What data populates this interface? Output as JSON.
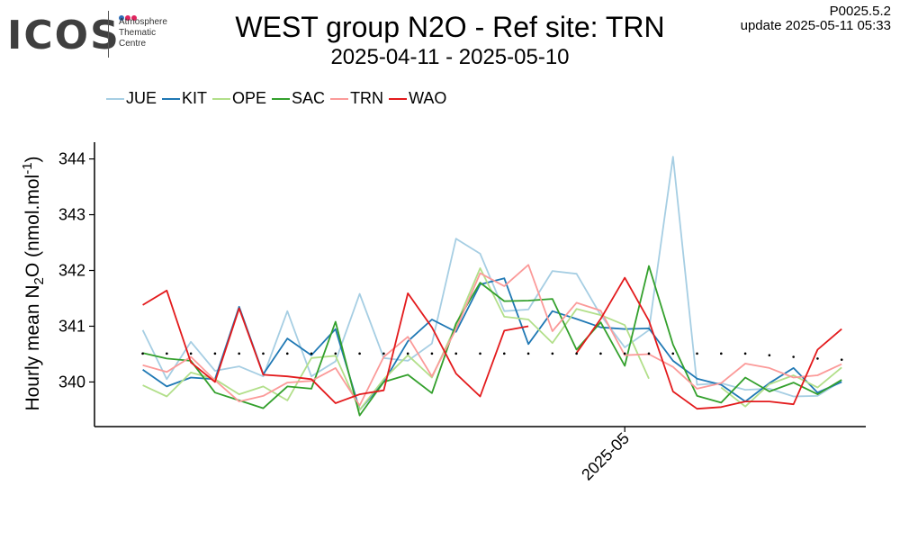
{
  "logo": {
    "text": "ICOS",
    "subtitle_lines": [
      "Atmosphere",
      "Thematic",
      "Centre"
    ],
    "dot_colors": [
      "#2f6db5",
      "#e0245e",
      "#e0245e"
    ]
  },
  "header": {
    "title": "WEST group N2O - Ref site: TRN",
    "subtitle": "2025-04-11 - 2025-05-10",
    "version": "P0025.5.2",
    "update": "update  2025-05-11 05:33"
  },
  "chart_data": {
    "type": "line",
    "title": "WEST group N2O - Ref site: TRN",
    "subtitle": "2025-04-11 - 2025-05-10",
    "ylabel_parts": {
      "pre": "Hourly mean  N",
      "sub": "2",
      "mid": "O (nmol.mol",
      "sup": "-1",
      "post": ")"
    },
    "xlabel": "",
    "x": [
      "2025-04-11",
      "2025-04-12",
      "2025-04-13",
      "2025-04-14",
      "2025-04-15",
      "2025-04-16",
      "2025-04-17",
      "2025-04-18",
      "2025-04-19",
      "2025-04-20",
      "2025-04-21",
      "2025-04-22",
      "2025-04-23",
      "2025-04-24",
      "2025-04-25",
      "2025-04-26",
      "2025-04-27",
      "2025-04-28",
      "2025-04-29",
      "2025-04-30",
      "2025-05-01",
      "2025-05-02",
      "2025-05-03",
      "2025-05-04",
      "2025-05-05",
      "2025-05-06",
      "2025-05-07",
      "2025-05-08",
      "2025-05-09",
      "2025-05-10"
    ],
    "xlim": [
      "2025-04-09",
      "2025-05-11"
    ],
    "ylim": [
      339.2,
      344.3
    ],
    "yticks": [
      340,
      341,
      342,
      343,
      344
    ],
    "xticks": [
      {
        "date": "2025-05-01",
        "label": "2025-05"
      }
    ],
    "legend_position": "top-left",
    "grid": false,
    "series": [
      {
        "name": "JUE",
        "color": "#a6cee3",
        "values": [
          340.93,
          340.05,
          340.72,
          340.2,
          340.28,
          340.1,
          341.27,
          340.1,
          340.37,
          341.58,
          340.43,
          340.38,
          340.69,
          342.57,
          342.3,
          341.27,
          341.3,
          341.99,
          341.94,
          341.2,
          340.62,
          340.93,
          344.04,
          339.95,
          339.98,
          339.86,
          339.88,
          339.74,
          339.75,
          340.02
        ]
      },
      {
        "name": "KIT",
        "color": "#1f78b4",
        "values": [
          340.22,
          339.92,
          340.08,
          340.05,
          341.35,
          340.14,
          340.78,
          340.48,
          340.95,
          339.5,
          340.0,
          340.73,
          341.12,
          340.9,
          341.75,
          341.86,
          340.68,
          341.27,
          341.13,
          340.98,
          340.95,
          340.96,
          340.38,
          340.06,
          339.95,
          339.65,
          339.98,
          340.25,
          339.81,
          340.0
        ]
      },
      {
        "name": "OPE",
        "color": "#b2df8a",
        "values": [
          339.94,
          339.74,
          340.17,
          340.05,
          339.78,
          339.92,
          339.67,
          340.43,
          340.47,
          339.5,
          340.05,
          340.48,
          340.08,
          341.02,
          342.04,
          341.17,
          341.12,
          340.7,
          341.31,
          341.2,
          341.02,
          340.06,
          null,
          null,
          339.9,
          339.56,
          339.96,
          340.12,
          339.9,
          340.26
        ]
      },
      {
        "name": "SAC",
        "color": "#33a02c",
        "values": [
          340.52,
          340.42,
          340.38,
          339.81,
          339.67,
          339.53,
          339.92,
          339.88,
          341.08,
          339.4,
          340.0,
          340.13,
          339.8,
          341.05,
          341.78,
          341.45,
          341.46,
          341.49,
          340.58,
          341.07,
          340.29,
          342.08,
          340.67,
          339.75,
          339.63,
          340.08,
          339.83,
          339.99,
          339.78,
          340.04
        ]
      },
      {
        "name": "TRN",
        "color": "#fb9a99",
        "values": [
          340.3,
          340.18,
          340.45,
          340.03,
          339.65,
          339.75,
          339.99,
          340.02,
          340.25,
          339.58,
          340.45,
          340.81,
          340.1,
          340.95,
          341.95,
          341.72,
          342.1,
          340.91,
          341.42,
          341.28,
          340.48,
          340.5,
          340.27,
          339.88,
          339.98,
          340.33,
          340.25,
          340.08,
          340.12,
          340.32
        ]
      },
      {
        "name": "WAO",
        "color": "#e31a1c",
        "values": [
          341.38,
          341.64,
          340.35,
          340.0,
          341.32,
          340.13,
          340.1,
          340.05,
          339.62,
          339.78,
          339.85,
          341.59,
          340.98,
          340.15,
          339.74,
          340.92,
          341.0,
          null,
          340.52,
          341.13,
          341.87,
          341.1,
          339.83,
          339.52,
          339.55,
          339.65,
          339.65,
          339.6,
          340.58,
          340.95
        ]
      }
    ],
    "reference_dots": {
      "color": "#000000",
      "values": [
        340.51,
        340.51,
        340.51,
        340.51,
        340.51,
        340.51,
        340.51,
        340.51,
        340.51,
        340.51,
        340.51,
        340.51,
        340.51,
        340.51,
        340.51,
        340.51,
        340.51,
        340.51,
        340.51,
        340.51,
        340.51,
        340.51,
        340.51,
        340.51,
        340.51,
        340.51,
        340.48,
        340.45,
        340.42,
        340.4
      ]
    }
  }
}
